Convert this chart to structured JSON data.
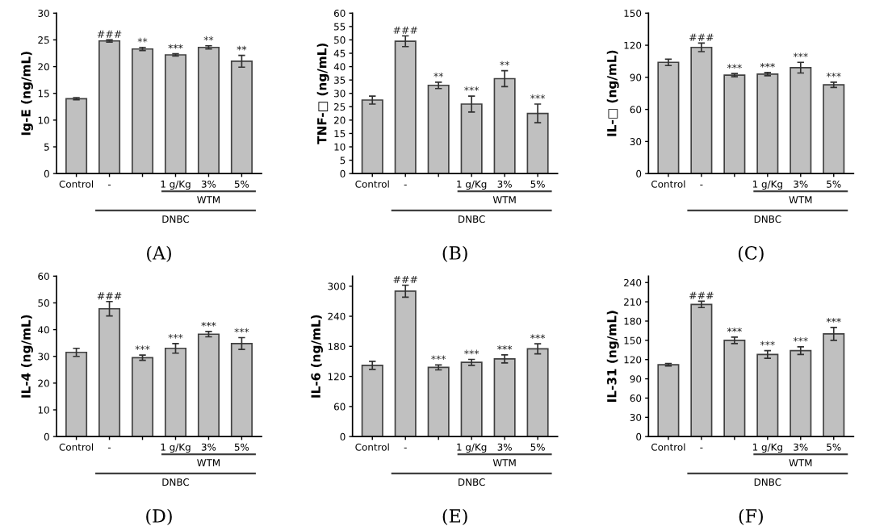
{
  "chart_data": [
    {
      "type": "bar",
      "ylabel": "Ig-E (ng/mL)",
      "categories": [
        "Control",
        "-",
        null,
        "1 g/Kg",
        "3%",
        "5%"
      ],
      "values": [
        14,
        24.8,
        23.3,
        22.2,
        23.6,
        21
      ],
      "errors": [
        0.2,
        0.2,
        0.3,
        0.2,
        0.3,
        1.1
      ],
      "color": "#c0c0c0",
      "ylim": [
        0,
        30
      ],
      "yticks": [
        0,
        5,
        10,
        15,
        20,
        25,
        30
      ],
      "value_labels": [
        null,
        "###",
        "**",
        "***",
        "**",
        "**"
      ],
      "annotations": [
        "WTM",
        "DNBC",
        "(A)"
      ]
    },
    {
      "type": "bar",
      "ylabel": "TNF-□ (ng/mL)",
      "categories": [
        "Control",
        "-",
        null,
        "1 g/Kg",
        "3%",
        "5%"
      ],
      "values": [
        27.5,
        49.5,
        33,
        26,
        35.5,
        22.5
      ],
      "errors": [
        1.5,
        2,
        1.2,
        3,
        3,
        3.5
      ],
      "color": "#c0c0c0",
      "ylim": [
        0,
        60
      ],
      "yticks": [
        0,
        5,
        10,
        15,
        20,
        25,
        30,
        35,
        40,
        45,
        50,
        55,
        60
      ],
      "value_labels": [
        null,
        "###",
        "**",
        "***",
        "**",
        "***"
      ],
      "annotations": [
        "WTM",
        "DNBC",
        "(B)"
      ]
    },
    {
      "type": "bar",
      "ylabel": "IL-□ (ng/mL)",
      "categories": [
        "Control",
        "-",
        null,
        "1 g/Kg",
        "3%",
        "5%"
      ],
      "values": [
        104,
        118,
        92,
        93,
        99,
        83
      ],
      "errors": [
        3,
        4,
        1.5,
        1.5,
        5,
        2.5
      ],
      "color": "#c0c0c0",
      "ylim": [
        0,
        150
      ],
      "yticks": [
        0,
        30,
        60,
        90,
        120,
        150
      ],
      "value_labels": [
        null,
        "###",
        "***",
        "***",
        "***",
        "***"
      ],
      "annotations": [
        "WTM",
        "DNBC",
        "(C)"
      ]
    },
    {
      "type": "bar",
      "ylabel": "IL-4 (ng/mL)",
      "categories": [
        "Control",
        "-",
        null,
        "1 g/Kg",
        "3%",
        "5%"
      ],
      "values": [
        31.5,
        47.8,
        29.5,
        33,
        38.3,
        34.8
      ],
      "errors": [
        1.5,
        2.7,
        1,
        1.8,
        1,
        2.2
      ],
      "color": "#c0c0c0",
      "ylim": [
        0,
        60
      ],
      "yticks": [
        0,
        10,
        20,
        30,
        40,
        50,
        60
      ],
      "value_labels": [
        null,
        "###",
        "***",
        "***",
        "***",
        "***"
      ],
      "annotations": [
        "WTM",
        "DNBC",
        "(D)"
      ]
    },
    {
      "type": "bar",
      "ylabel": "IL-6 (ng/mL)",
      "categories": [
        "Control",
        "-",
        null,
        "1 g/Kg",
        "3%",
        "5%"
      ],
      "values": [
        142,
        290,
        138,
        148,
        155,
        175
      ],
      "errors": [
        8,
        12,
        5,
        6,
        8,
        10
      ],
      "color": "#c0c0c0",
      "ylim": [
        0,
        320
      ],
      "yticks": [
        0,
        60,
        120,
        180,
        240,
        300
      ],
      "value_labels": [
        null,
        "###",
        "***",
        "***",
        "***",
        "***"
      ],
      "annotations": [
        "WTM",
        "DNBC",
        "(E)"
      ]
    },
    {
      "type": "bar",
      "ylabel": "IL-31 (ng/mL)",
      "categories": [
        "Control",
        "-",
        null,
        "1 g/Kg",
        "3%",
        "5%"
      ],
      "values": [
        112,
        206,
        150,
        128,
        134,
        160
      ],
      "errors": [
        2,
        5,
        5,
        6,
        6,
        10
      ],
      "color": "#c0c0c0",
      "ylim": [
        0,
        250
      ],
      "yticks": [
        0,
        30,
        60,
        90,
        120,
        150,
        180,
        210,
        240
      ],
      "value_labels": [
        null,
        "###",
        "***",
        "***",
        "***",
        "***"
      ],
      "annotations": [
        "WTM",
        "DNBC",
        "(F)"
      ]
    }
  ]
}
